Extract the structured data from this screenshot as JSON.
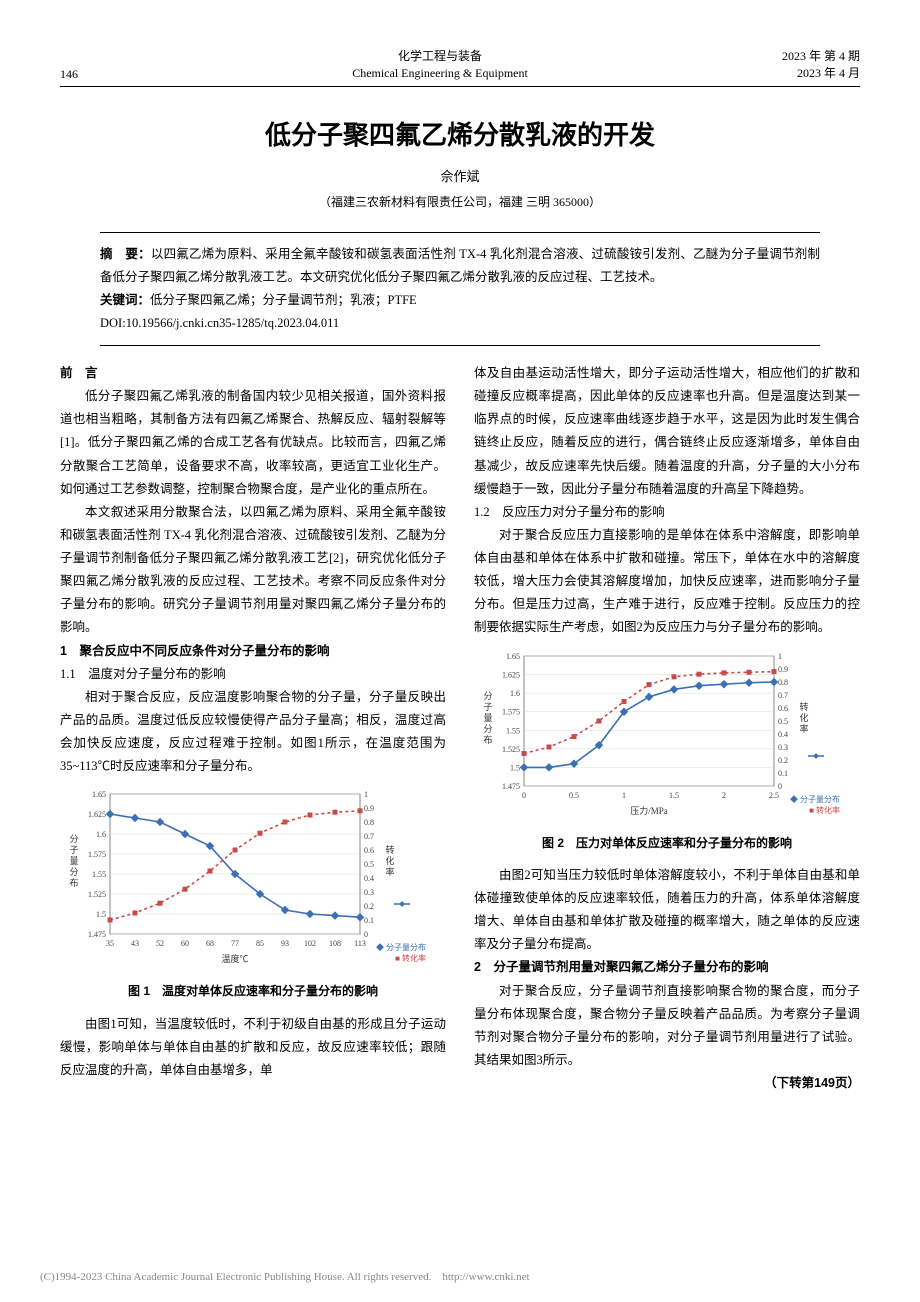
{
  "header": {
    "page_num": "146",
    "journal_cn": "化学工程与装备",
    "journal_en": "Chemical Engineering & Equipment",
    "year_issue": "2023 年 第 4 期",
    "year_month": "2023 年 4 月"
  },
  "title": "低分子聚四氟乙烯分散乳液的开发",
  "author": "佘作斌",
  "affiliation": "（福建三农新材料有限责任公司，福建 三明 365000）",
  "abstract": {
    "label": "摘　要：",
    "text": "以四氟乙烯为原料、采用全氟辛酸铵和碳氢表面活性剂 TX-4 乳化剂混合溶液、过硫酸铵引发剂、乙醚为分子量调节剂制备低分子聚四氟乙烯分散乳液工艺。本文研究优化低分子聚四氟乙烯分散乳液的反应过程、工艺技术。",
    "kw_label": "关键词：",
    "kw_text": "低分子聚四氟乙烯；分子量调节剂；乳液；PTFE",
    "doi": "DOI:10.19566/j.cnki.cn35-1285/tq.2023.04.011"
  },
  "left_col": {
    "preface_head": "前　言",
    "p1": "低分子聚四氟乙烯乳液的制备国内较少见相关报道，国外资料报道也相当粗略，其制备方法有四氟乙烯聚合、热解反应、辐射裂解等[1]。低分子聚四氟乙烯的合成工艺各有优缺点。比较而言，四氟乙烯分散聚合工艺简单，设备要求不高，收率较高，更适宜工业化生产。如何通过工艺参数调整，控制聚合物聚合度，是产业化的重点所在。",
    "p2": "本文叙述采用分散聚合法，以四氟乙烯为原料、采用全氟辛酸铵和碳氢表面活性剂 TX-4 乳化剂混合溶液、过硫酸铵引发剂、乙醚为分子量调节剂制备低分子聚四氟乙烯分散乳液工艺[2]，研究优化低分子聚四氟乙烯分散乳液的反应过程、工艺技术。考察不同反应条件对分子量分布的影响。研究分子量调节剂用量对聚四氟乙烯分子量分布的影响。",
    "h1": "1　聚合反应中不同反应条件对分子量分布的影响",
    "h11": "1.1　温度对分子量分布的影响",
    "p3": "相对于聚合反应，反应温度影响聚合物的分子量，分子量反映出产品的品质。温度过低反应较慢使得产品分子量高；相反，温度过高会加快反应速度，反应过程难于控制。如图1所示，在温度范围为35~113℃时反应速率和分子量分布。",
    "fig1_caption": "图 1　温度对单体反应速率和分子量分布的影响",
    "p4": "由图1可知，当温度较低时，不利于初级自由基的形成且分子运动缓慢，影响单体与单体自由基的扩散和反应，故反应速率较低；跟随反应温度的升高，单体自由基增多，单"
  },
  "right_col": {
    "p5": "体及自由基运动活性增大，即分子运动活性增大，相应他们的扩散和碰撞反应概率提高，因此单体的反应速率也升高。但是温度达到某一临界点的时候，反应速率曲线逐步趋于水平，这是因为此时发生偶合链终止反应，随着反应的进行，偶合链终止反应逐渐增多，单体自由基减少，故反应速率先快后缓。随着温度的升高，分子量的大小分布缓慢趋于一致，因此分子量分布随着温度的升高呈下降趋势。",
    "h12": "1.2　反应压力对分子量分布的影响",
    "p6": "对于聚合反应压力直接影响的是单体在体系中溶解度，即影响单体自由基和单体在体系中扩散和碰撞。常压下，单体在水中的溶解度较低，增大压力会使其溶解度增加，加快反应速率，进而影响分子量分布。但是压力过高，生产难于进行，反应难于控制。反应压力的控制要依据实际生产考虑，如图2为反应压力与分子量分布的影响。",
    "fig2_caption": "图 2　压力对单体反应速率和分子量分布的影响",
    "p7": "由图2可知当压力较低时单体溶解度较小，不利于单体自由基和单体碰撞致使单体的反应速率较低，随着压力的升高，体系单体溶解度增大、单体自由基和单体扩散及碰撞的概率增大，随之单体的反应速率及分子量分布提高。",
    "h2": "2　分子量调节剂用量对聚四氟乙烯分子量分布的影响",
    "p8": "对于聚合反应，分子量调节剂直接影响聚合物的聚合度，而分子量分布体现聚合度，聚合物分子量反映着产品品质。为考察分子量调节剂对聚合物分子量分布的影响，对分子量调节剂用量进行了试验。其结果如图3所示。",
    "continue": "（下转第149页）"
  },
  "chart1": {
    "type": "line",
    "x_label": "温度℃",
    "x_ticks": [
      "35",
      "43",
      "52",
      "60",
      "68",
      "77",
      "85",
      "93",
      "102",
      "108",
      "113"
    ],
    "left_y_label": "分子量分布",
    "left_y_ticks": [
      "1.475",
      "1.5",
      "1.525",
      "1.55",
      "1.575",
      "1.6",
      "1.625",
      "1.65"
    ],
    "right_y_ticks": [
      "0",
      "0.1",
      "0.2",
      "0.3",
      "0.4",
      "0.5",
      "0.6",
      "0.7",
      "0.8",
      "0.9",
      "1"
    ],
    "right_y_label": "转化率",
    "series1": {
      "name": "分子量分布",
      "color": "#3b6fb6",
      "values": [
        1.625,
        1.62,
        1.615,
        1.6,
        1.585,
        1.55,
        1.525,
        1.505,
        1.5,
        1.498,
        1.496
      ]
    },
    "series2": {
      "name": "转化率",
      "color": "#c94a4a",
      "dash": true,
      "values": [
        0.1,
        0.15,
        0.22,
        0.32,
        0.45,
        0.6,
        0.72,
        0.8,
        0.85,
        0.87,
        0.88
      ]
    },
    "legend": [
      "分子量分布",
      "转化率"
    ],
    "bg": "#ffffff",
    "grid": "#d9d9d9",
    "axis": "#666666",
    "label_fs": 8
  },
  "chart2": {
    "type": "line",
    "x_label": "压力/MPa",
    "x_ticks": [
      "0",
      "0.5",
      "1",
      "1.5",
      "2",
      "2.5"
    ],
    "left_y_label": "分子量分布",
    "left_y_ticks": [
      "1.475",
      "1.5",
      "1.525",
      "1.55",
      "1.575",
      "1.6",
      "1.625",
      "1.65"
    ],
    "right_y_ticks": [
      "0",
      "0.1",
      "0.2",
      "0.3",
      "0.4",
      "0.5",
      "0.6",
      "0.7",
      "0.8",
      "0.9",
      "1"
    ],
    "right_y_label": "转化率",
    "series1": {
      "name": "分子量分布",
      "color": "#3b6fb6",
      "values": [
        1.5,
        1.5,
        1.505,
        1.53,
        1.575,
        1.595,
        1.605,
        1.61,
        1.612,
        1.614,
        1.615
      ]
    },
    "series2": {
      "name": "转化率",
      "color": "#c94a4a",
      "dash": true,
      "values": [
        0.25,
        0.3,
        0.38,
        0.5,
        0.65,
        0.78,
        0.84,
        0.86,
        0.87,
        0.875,
        0.88
      ]
    },
    "legend": [
      "分子量分布",
      "转化率"
    ],
    "bg": "#ffffff",
    "grid": "#d9d9d9",
    "axis": "#666666",
    "label_fs": 8
  },
  "footer": "(C)1994-2023 China Academic Journal Electronic Publishing House. All rights reserved.　http://www.cnki.net"
}
